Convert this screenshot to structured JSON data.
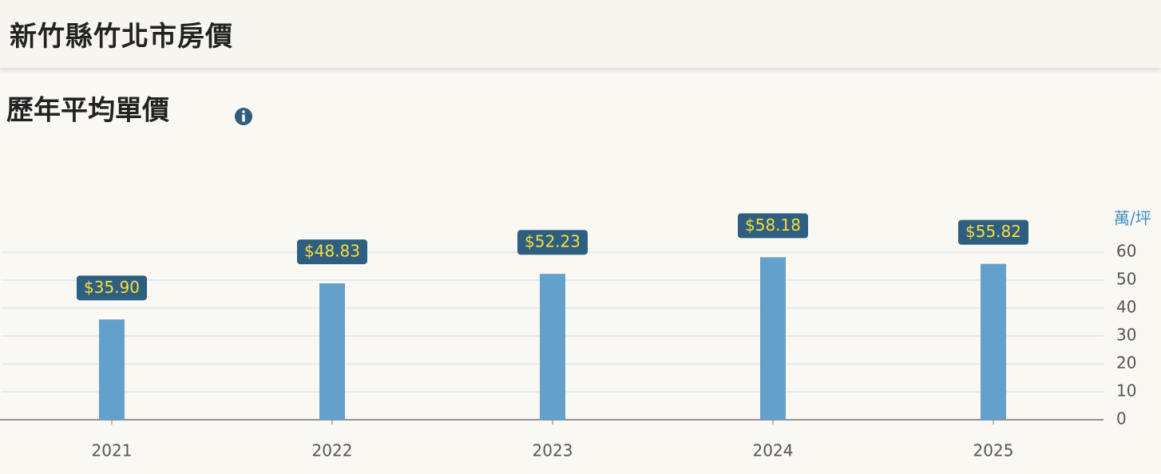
{
  "header": {
    "title": "新竹縣竹北市房價"
  },
  "chart_data": {
    "type": "bar",
    "title": "歷年平均單價",
    "y_unit": "萬/坪",
    "categories": [
      "2021",
      "2022",
      "2023",
      "2024",
      "2025"
    ],
    "values": [
      35.9,
      48.83,
      52.23,
      58.18,
      55.82
    ],
    "value_labels": [
      "$35.90",
      "$48.83",
      "$52.23",
      "$58.18",
      "$55.82"
    ],
    "color": "#64a0cc",
    "label_box_color": "#2e5f80",
    "label_text_color": "#f7de3c",
    "ylim": [
      0,
      60
    ],
    "yticks": [
      0,
      10,
      20,
      30,
      40,
      50,
      60
    ],
    "grid": true
  }
}
